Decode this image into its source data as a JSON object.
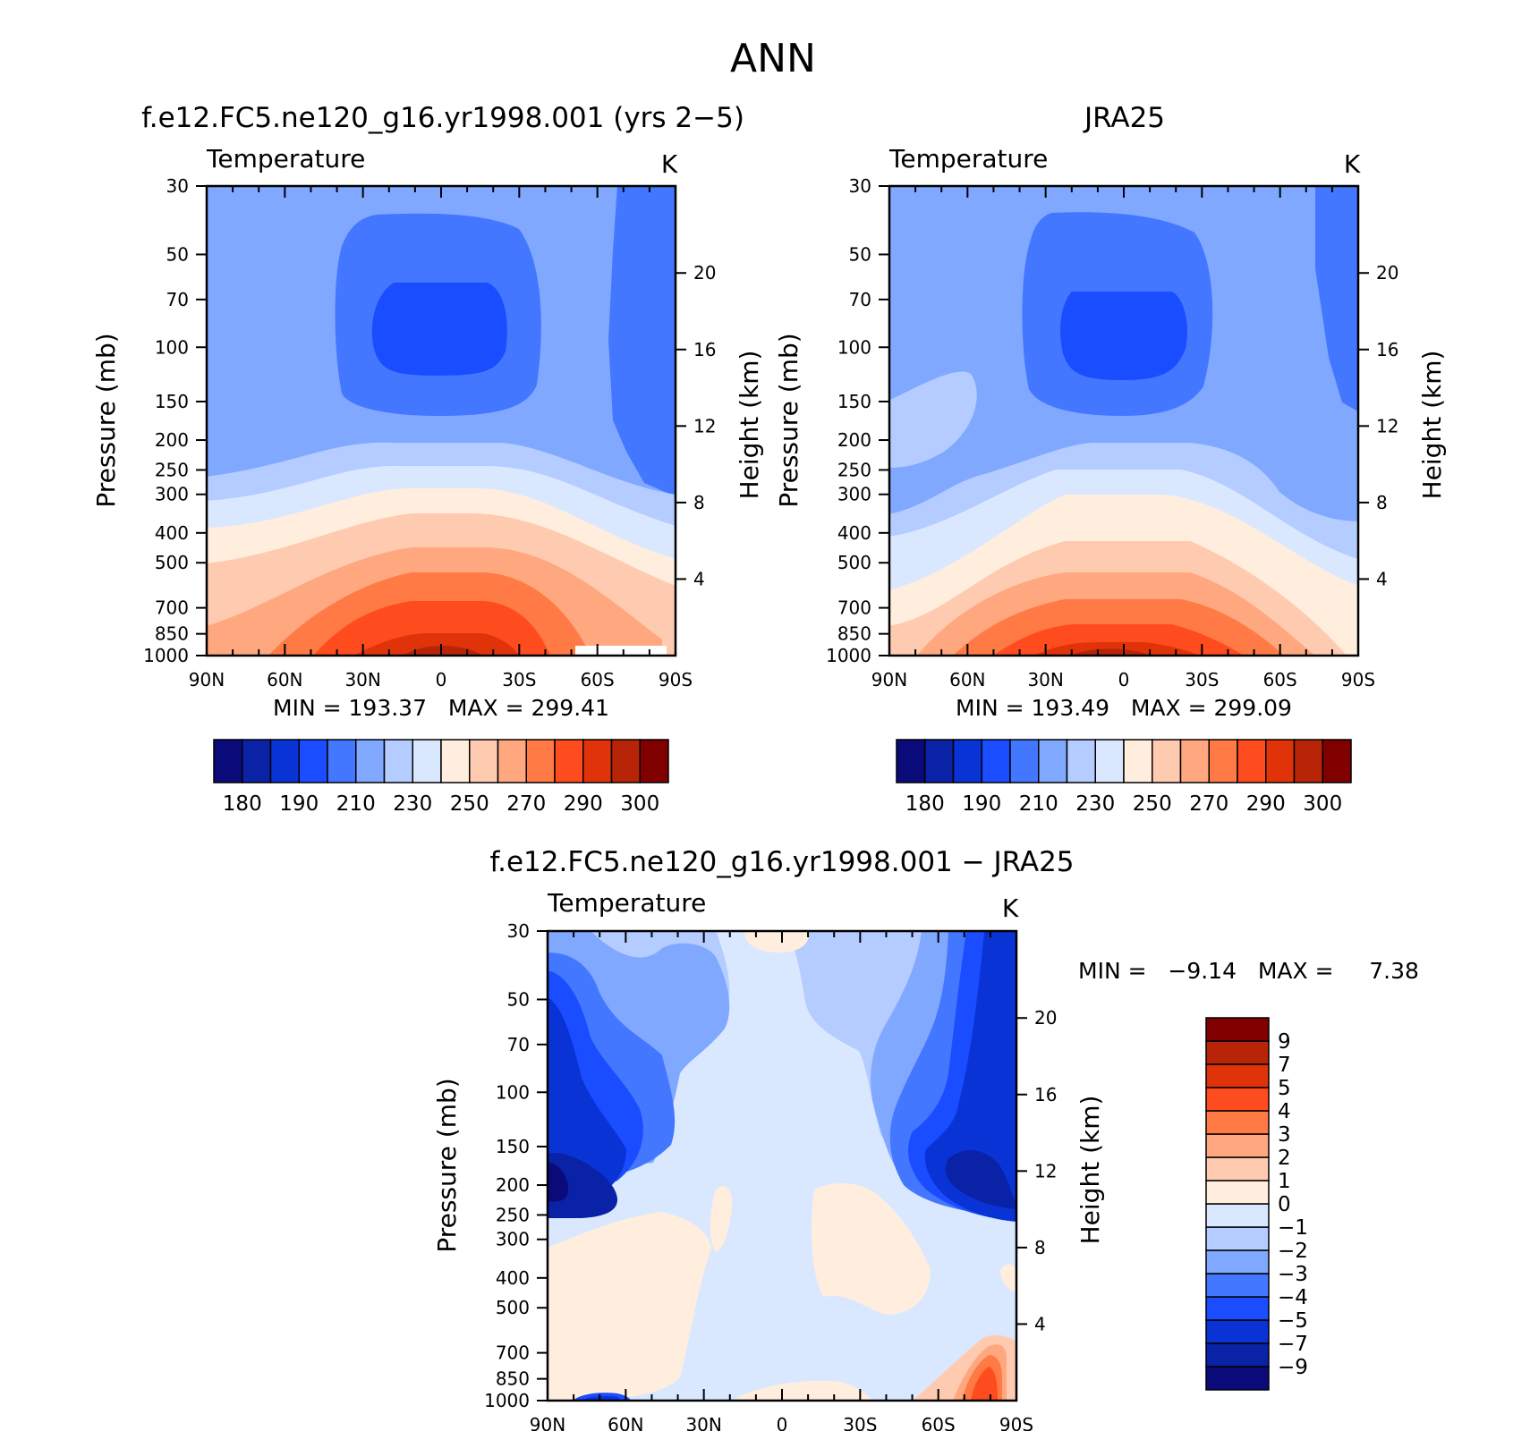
{
  "figure_title": "ANN",
  "colors": {
    "abs_palette": [
      "#0a0a7a",
      "#0a22a6",
      "#0a33d6",
      "#1a4dff",
      "#4477ff",
      "#80a8ff",
      "#b4ccff",
      "#dae8ff",
      "#ffeedd",
      "#ffcbb0",
      "#ffa87f",
      "#ff7a45",
      "#ff4c1e",
      "#e0330a",
      "#b82408",
      "#800000"
    ],
    "diff_palette": [
      "#0a0a7a",
      "#0a22a6",
      "#0a33d6",
      "#1a4dff",
      "#4477ff",
      "#80a8ff",
      "#b4ccff",
      "#dae8ff",
      "#ffeedd",
      "#ffcbb0",
      "#ffa87f",
      "#ff7a45",
      "#ff4c1e",
      "#e0330a",
      "#b82408",
      "#800000"
    ]
  },
  "panels": [
    {
      "title": "f.e12.FC5.ne120_g16.yr1998.001 (yrs 2−5)",
      "left_label": "Temperature",
      "units": "K",
      "ylabel": "Pressure (mb)",
      "ylabel_right": "Height (km)",
      "stats": "MIN = 193.37   MAX = 299.41",
      "min": 193.37,
      "max": 299.41
    },
    {
      "title": "JRA25",
      "left_label": "Temperature",
      "units": "K",
      "ylabel": "Pressure (mb)",
      "ylabel_right": "Height (km)",
      "stats": "MIN = 193.49   MAX = 299.09",
      "min": 193.49,
      "max": 299.09
    },
    {
      "title": "f.e12.FC5.ne120_g16.yr1998.001 − JRA25",
      "left_label": "Temperature",
      "units": "K",
      "ylabel": "Pressure (mb)",
      "ylabel_right": "Height (km)",
      "stats": "MIN =   −9.14   MAX =     7.38",
      "min": -9.14,
      "max": 7.38
    }
  ],
  "abs_colorbar_labels": [
    "180",
    "190",
    "210",
    "230",
    "250",
    "270",
    "290",
    "300"
  ],
  "diff_colorbar_labels": [
    "9",
    "7",
    "5",
    "4",
    "3",
    "2",
    "1",
    "0",
    "−1",
    "−2",
    "−3",
    "−4",
    "−5",
    "−7",
    "−9"
  ],
  "chart_data": [
    {
      "type": "heatmap",
      "title": "f.e12.FC5.ne120_g16.yr1998.001 (yrs 2−5)",
      "ylabel": "Pressure (mb)",
      "x_ticks": [
        "90N",
        "60N",
        "30N",
        "0",
        "30S",
        "60S",
        "90S"
      ],
      "y_ticks": [
        "30",
        "50",
        "70",
        "100",
        "150",
        "200",
        "250",
        "300",
        "400",
        "500",
        "700",
        "850",
        "1000"
      ],
      "y_right_ticks": [
        "20",
        "16",
        "12",
        "8",
        "4"
      ],
      "y_scale": "log",
      "ylim": [
        1000,
        30
      ],
      "units": "K",
      "min": 193.37,
      "max": 299.41
    },
    {
      "type": "heatmap",
      "title": "JRA25",
      "ylabel": "Pressure (mb)",
      "x_ticks": [
        "90N",
        "60N",
        "30N",
        "0",
        "30S",
        "60S",
        "90S"
      ],
      "y_ticks": [
        "30",
        "50",
        "70",
        "100",
        "150",
        "200",
        "250",
        "300",
        "400",
        "500",
        "700",
        "850",
        "1000"
      ],
      "y_right_ticks": [
        "20",
        "16",
        "12",
        "8",
        "4"
      ],
      "y_scale": "log",
      "ylim": [
        1000,
        30
      ],
      "units": "K",
      "min": 193.49,
      "max": 299.09
    },
    {
      "type": "heatmap",
      "title": "f.e12.FC5.ne120_g16.yr1998.001 − JRA25",
      "ylabel": "Pressure (mb)",
      "x_ticks": [
        "90N",
        "60N",
        "30N",
        "0",
        "30S",
        "60S",
        "90S"
      ],
      "y_ticks": [
        "30",
        "50",
        "70",
        "100",
        "150",
        "200",
        "250",
        "300",
        "400",
        "500",
        "700",
        "850",
        "1000"
      ],
      "y_right_ticks": [
        "20",
        "16",
        "12",
        "8",
        "4"
      ],
      "y_scale": "log",
      "ylim": [
        1000,
        30
      ],
      "units": "K",
      "min": -9.14,
      "max": 7.38
    }
  ]
}
